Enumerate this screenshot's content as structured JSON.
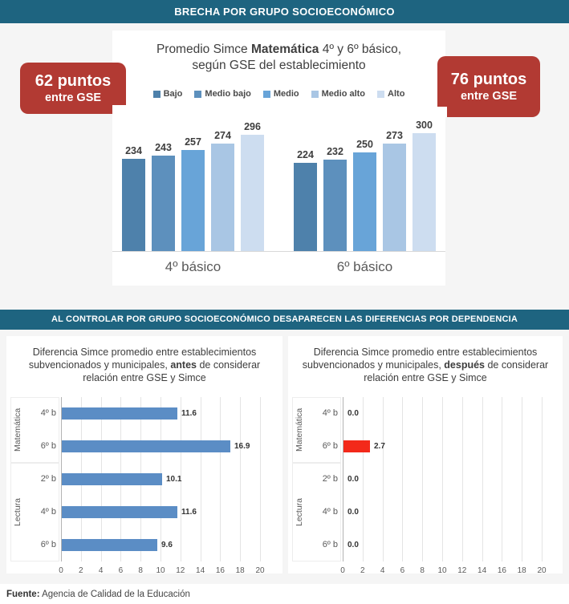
{
  "banners": {
    "top": "BRECHA POR GRUPO SOCIOECONÓMICO",
    "middle": "AL CONTROLAR POR GRUPO SOCIOECONÓMICO DESAPARECEN LAS DIFERENCIAS POR DEPENDENCIA"
  },
  "callouts": {
    "left": {
      "value_line": "62 puntos",
      "sub_line": "entre GSE"
    },
    "right": {
      "value_line": "76 puntos",
      "sub_line": "entre GSE"
    }
  },
  "top_chart": {
    "title_parts": [
      {
        "t": "Promedio Simce "
      },
      {
        "t": "Matemática",
        "b": true
      },
      {
        "t": " 4º y 6º básico, según GSE del establecimiento"
      }
    ]
  },
  "bottom_charts": [
    {
      "title_parts": [
        {
          "t": "Diferencia Simce promedio entre establecimientos subvencionados y municipales, "
        },
        {
          "t": "antes",
          "b": true
        },
        {
          "t": " de considerar relación entre GSE y Simce"
        }
      ]
    },
    {
      "title_parts": [
        {
          "t": "Diferencia Simce promedio entre establecimientos subvencionados y municipales, "
        },
        {
          "t": "después",
          "b": true
        },
        {
          "t": " de considerar relación entre GSE y Simce"
        }
      ]
    }
  ],
  "footer": {
    "label": "Fuente:",
    "text": " Agencia de Calidad de la Educación"
  },
  "colors": {
    "banner_bg": "#1e6480",
    "callout_bg": "#b23a33",
    "page_bg": "#f5f5f5",
    "hbar_blue": "#5b8dc5",
    "hbar_red": "#f3291a"
  },
  "chart_data": [
    {
      "type": "bar",
      "title": "Promedio Simce Matemática 4º y 6º básico, según GSE del establecimiento",
      "categories": [
        "4º básico",
        "6º básico"
      ],
      "series": [
        {
          "name": "Bajo",
          "values": [
            234,
            224
          ],
          "color": "#4e81ab"
        },
        {
          "name": "Medio bajo",
          "values": [
            243,
            232
          ],
          "color": "#5d90bd"
        },
        {
          "name": "Medio",
          "values": [
            257,
            250
          ],
          "color": "#68a4d8"
        },
        {
          "name": "Medio alto",
          "values": [
            274,
            273
          ],
          "color": "#a9c6e4"
        },
        {
          "name": "Alto",
          "values": [
            296,
            300
          ],
          "color": "#cdddf0"
        }
      ],
      "legend_position": "top",
      "grid": false,
      "data_labels": true
    },
    {
      "type": "bar",
      "orientation": "horizontal",
      "title": "Diferencia Simce promedio entre establecimientos subvencionados y municipales, antes de considerar relación entre GSE y Simce",
      "groups": [
        {
          "name": "Matemática",
          "rows": [
            {
              "label": "4º b",
              "value": 11.6
            },
            {
              "label": "6º b",
              "value": 16.9
            }
          ]
        },
        {
          "name": "Lectura",
          "rows": [
            {
              "label": "2º b",
              "value": 10.1
            },
            {
              "label": "4º b",
              "value": 11.6
            },
            {
              "label": "6º b",
              "value": 9.6
            }
          ]
        }
      ],
      "bar_color": "#5b8dc5",
      "xlim": [
        0,
        20
      ],
      "x_ticks": [
        0,
        2,
        4,
        6,
        8,
        10,
        12,
        14,
        16,
        18,
        20
      ],
      "grid": true,
      "data_labels": true
    },
    {
      "type": "bar",
      "orientation": "horizontal",
      "title": "Diferencia Simce promedio entre establecimientos subvencionados y municipales, después de considerar relación entre GSE y Simce",
      "groups": [
        {
          "name": "Matemática",
          "rows": [
            {
              "label": "4º b",
              "value": 0.0
            },
            {
              "label": "6º b",
              "value": 2.7,
              "color": "#f3291a"
            }
          ]
        },
        {
          "name": "Lectura",
          "rows": [
            {
              "label": "2º b",
              "value": 0.0
            },
            {
              "label": "4º b",
              "value": 0.0
            },
            {
              "label": "6º b",
              "value": 0.0
            }
          ]
        }
      ],
      "bar_color": "#5b8dc5",
      "xlim": [
        0,
        20
      ],
      "x_ticks": [
        0,
        2,
        4,
        6,
        8,
        10,
        12,
        14,
        16,
        18,
        20
      ],
      "grid": true,
      "data_labels": true
    }
  ]
}
